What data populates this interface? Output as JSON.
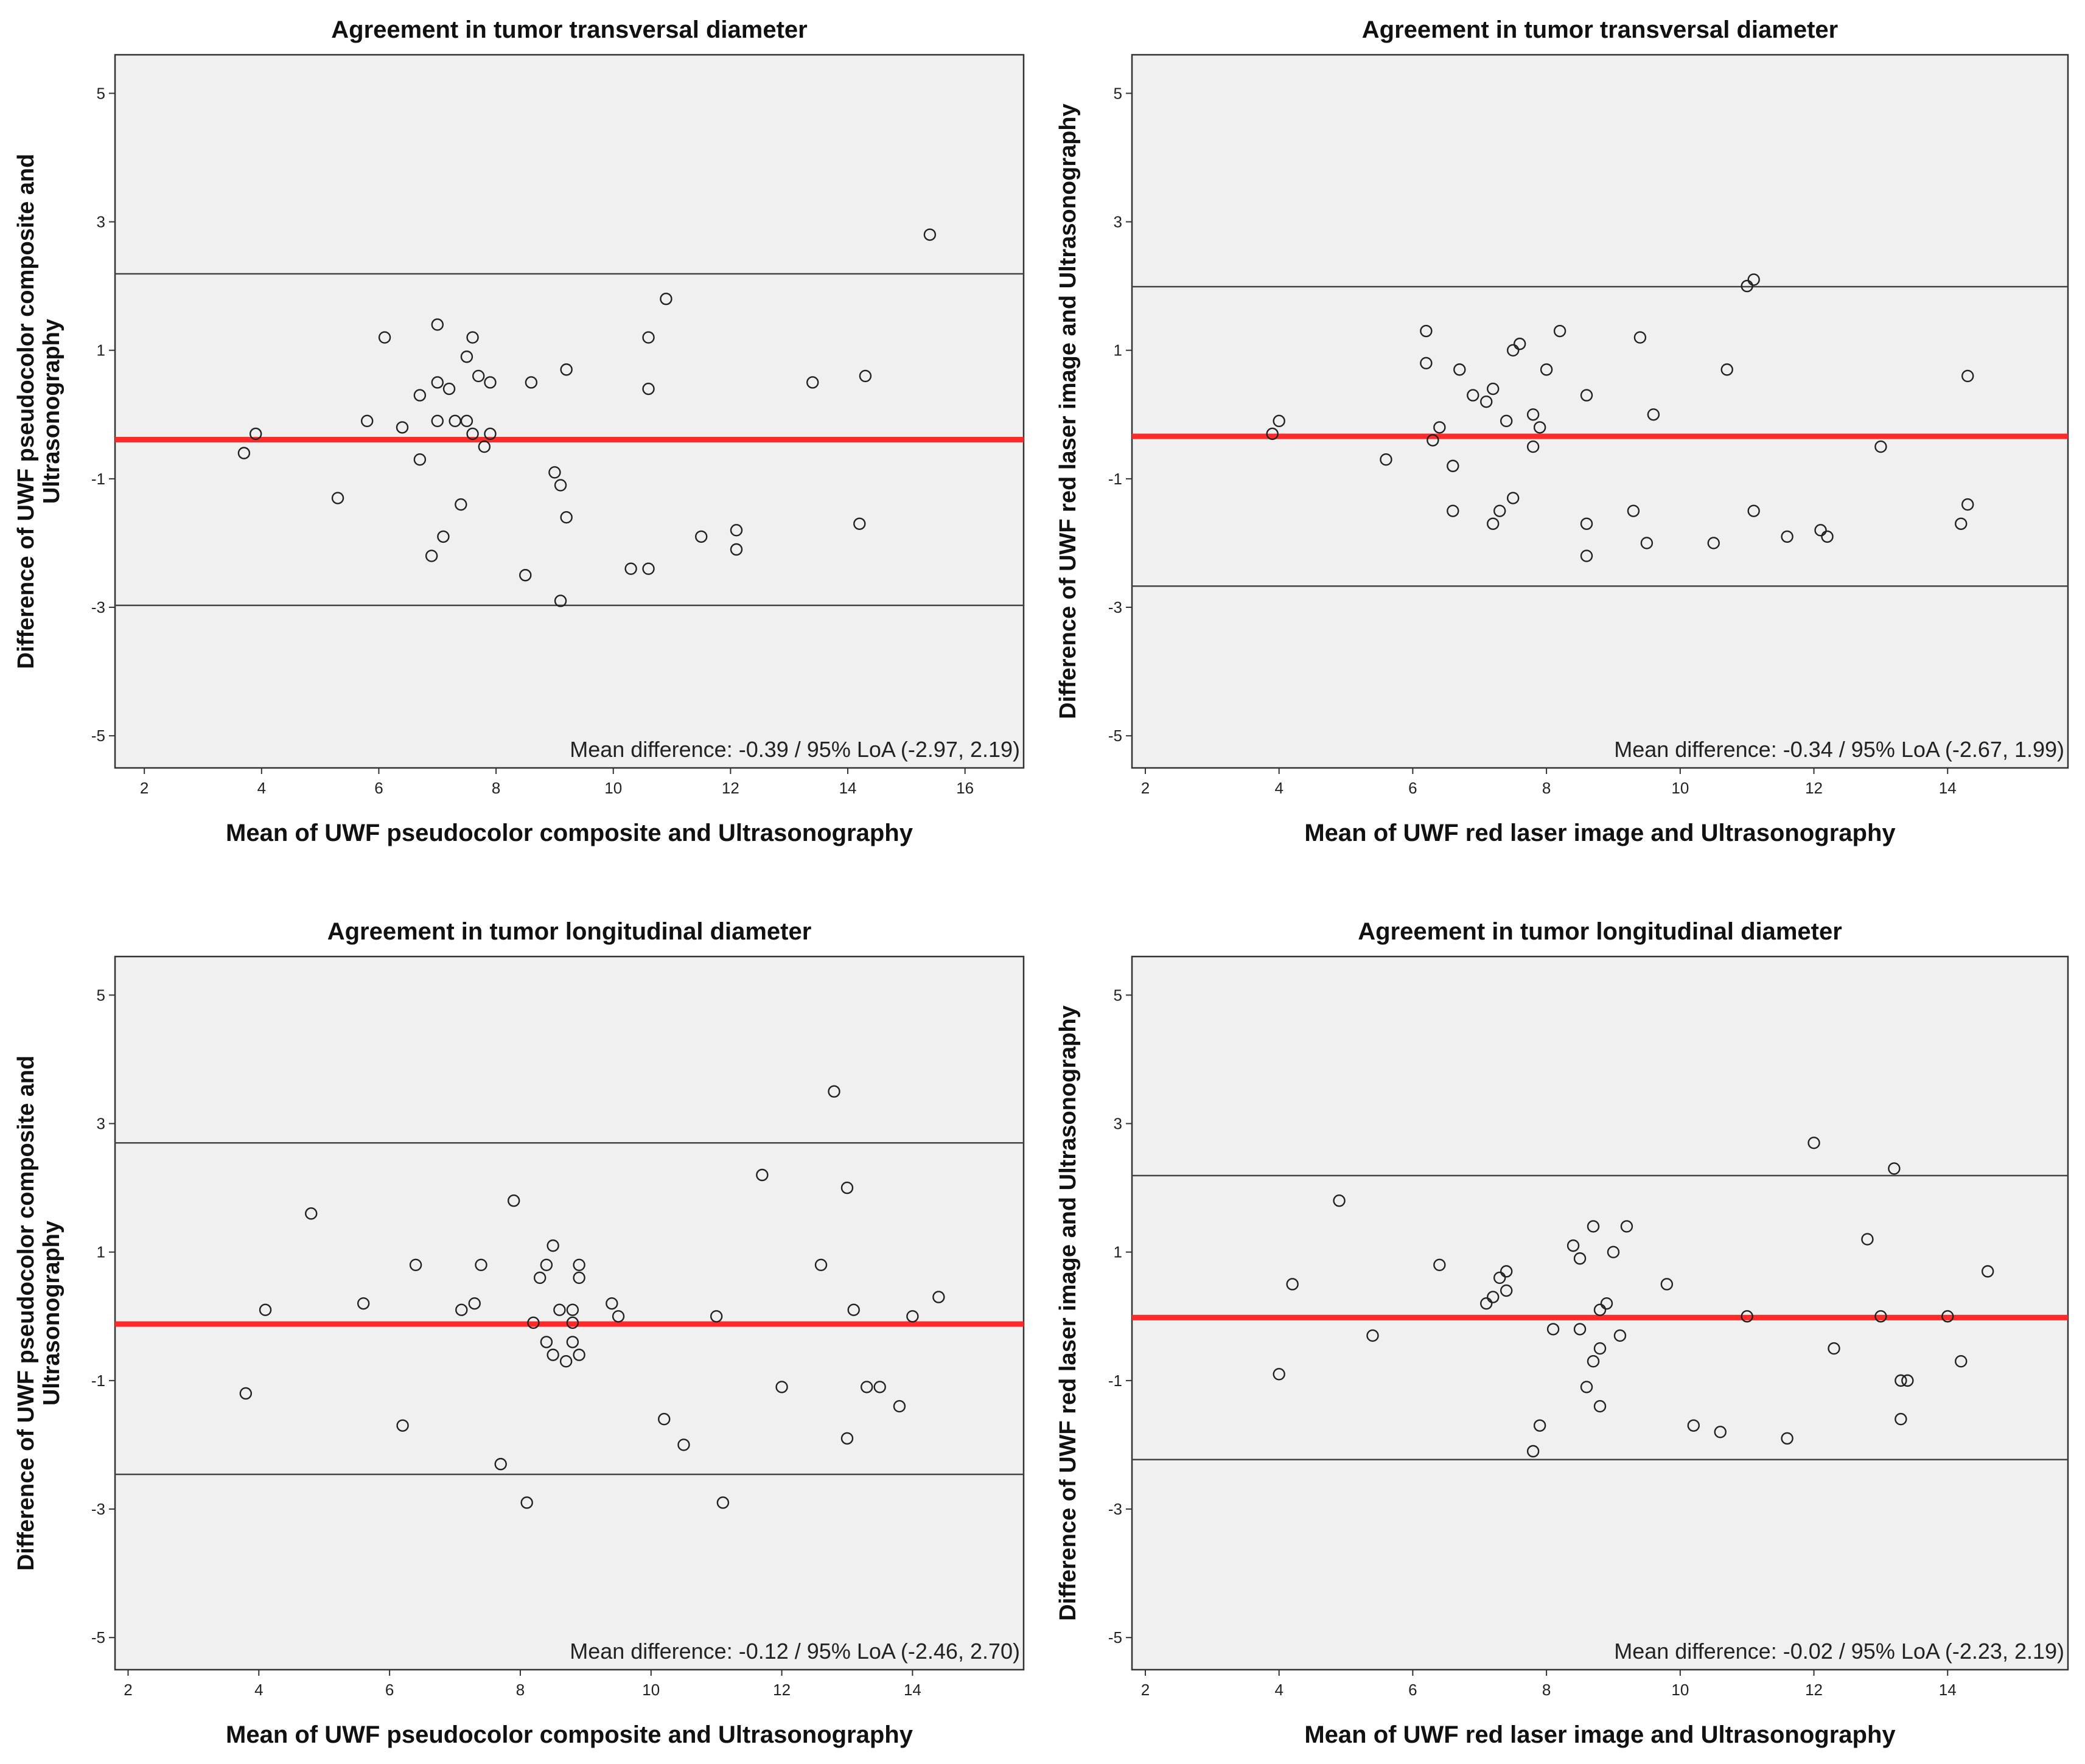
{
  "chart_data": [
    {
      "type": "scatter",
      "title": "Agreement in tumor transversal diameter",
      "xlabel": "Mean of UWF pseudocolor composite and Ultrasonography",
      "ylabel_lines": [
        "Difference of UWF pseudocolor composite and",
        "Ultrasonography"
      ],
      "xlim": [
        1.5,
        17
      ],
      "ylim": [
        -5.5,
        5.6
      ],
      "xticks": [
        2,
        4,
        6,
        8,
        10,
        12,
        14,
        16
      ],
      "yticks": [
        -5,
        -3,
        -1,
        1,
        3,
        5
      ],
      "mean_difference": -0.39,
      "loa_lower": -2.97,
      "loa_upper": 2.19,
      "annotation": "Mean difference: -0.39 / 95% LoA (-2.97, 2.19)",
      "points": [
        [
          3.7,
          -0.6
        ],
        [
          3.9,
          -0.3
        ],
        [
          5.3,
          -1.3
        ],
        [
          5.8,
          -0.1
        ],
        [
          6.1,
          1.2
        ],
        [
          6.4,
          -0.2
        ],
        [
          6.7,
          0.3
        ],
        [
          6.7,
          -0.7
        ],
        [
          6.9,
          -2.2
        ],
        [
          7.0,
          0.5
        ],
        [
          7.0,
          -0.1
        ],
        [
          7.0,
          1.4
        ],
        [
          7.1,
          -1.9
        ],
        [
          7.2,
          0.4
        ],
        [
          7.3,
          -0.1
        ],
        [
          7.4,
          -1.4
        ],
        [
          7.5,
          0.9
        ],
        [
          7.5,
          -0.1
        ],
        [
          7.6,
          -0.3
        ],
        [
          7.6,
          1.2
        ],
        [
          7.7,
          0.6
        ],
        [
          7.8,
          -0.5
        ],
        [
          7.9,
          0.5
        ],
        [
          7.9,
          -0.3
        ],
        [
          8.5,
          -2.5
        ],
        [
          8.6,
          0.5
        ],
        [
          9.0,
          -0.9
        ],
        [
          9.1,
          -1.1
        ],
        [
          9.1,
          -2.9
        ],
        [
          9.2,
          0.7
        ],
        [
          9.2,
          -1.6
        ],
        [
          10.3,
          -2.4
        ],
        [
          10.6,
          1.2
        ],
        [
          10.6,
          0.4
        ],
        [
          10.6,
          -2.4
        ],
        [
          10.9,
          1.8
        ],
        [
          11.5,
          -1.9
        ],
        [
          12.1,
          -1.8
        ],
        [
          12.1,
          -2.1
        ],
        [
          13.4,
          0.5
        ],
        [
          14.2,
          -1.7
        ],
        [
          14.3,
          0.6
        ],
        [
          15.4,
          2.8
        ]
      ]
    },
    {
      "type": "scatter",
      "title": "Agreement in tumor transversal diameter",
      "xlabel": "Mean of UWF red laser image and Ultrasonography",
      "ylabel_lines": [
        "Difference of UWF red laser image and Ultrasonography"
      ],
      "xlim": [
        1.8,
        15.8
      ],
      "ylim": [
        -5.5,
        5.6
      ],
      "xticks": [
        2,
        4,
        6,
        8,
        10,
        12,
        14
      ],
      "yticks": [
        -5,
        -3,
        -1,
        1,
        3,
        5
      ],
      "mean_difference": -0.34,
      "loa_lower": -2.67,
      "loa_upper": 1.99,
      "annotation": "Mean difference: -0.34 / 95% LoA (-2.67, 1.99)",
      "points": [
        [
          3.9,
          -0.3
        ],
        [
          4.0,
          -0.1
        ],
        [
          5.6,
          -0.7
        ],
        [
          6.2,
          1.3
        ],
        [
          6.2,
          0.8
        ],
        [
          6.3,
          -0.4
        ],
        [
          6.4,
          -0.2
        ],
        [
          6.6,
          -1.5
        ],
        [
          6.6,
          -0.8
        ],
        [
          6.7,
          0.7
        ],
        [
          6.9,
          0.3
        ],
        [
          7.1,
          0.2
        ],
        [
          7.2,
          -1.7
        ],
        [
          7.2,
          0.4
        ],
        [
          7.3,
          -1.5
        ],
        [
          7.4,
          -0.1
        ],
        [
          7.5,
          -1.3
        ],
        [
          7.5,
          1.0
        ],
        [
          7.6,
          1.1
        ],
        [
          7.8,
          0.0
        ],
        [
          7.8,
          -0.5
        ],
        [
          7.9,
          -0.2
        ],
        [
          8.0,
          0.7
        ],
        [
          8.2,
          1.3
        ],
        [
          8.6,
          -1.7
        ],
        [
          8.6,
          0.3
        ],
        [
          8.6,
          -2.2
        ],
        [
          9.3,
          -1.5
        ],
        [
          9.4,
          1.2
        ],
        [
          9.5,
          -2.0
        ],
        [
          9.6,
          0.0
        ],
        [
          10.5,
          -2.0
        ],
        [
          10.7,
          0.7
        ],
        [
          11.0,
          2.0
        ],
        [
          11.1,
          2.1
        ],
        [
          11.1,
          -1.5
        ],
        [
          11.6,
          -1.9
        ],
        [
          12.1,
          -1.8
        ],
        [
          12.2,
          -1.9
        ],
        [
          13.0,
          -0.5
        ],
        [
          14.2,
          -1.7
        ],
        [
          14.3,
          -1.4
        ],
        [
          14.3,
          0.6
        ]
      ]
    },
    {
      "type": "scatter",
      "title": "Agreement in tumor longitudinal diameter",
      "xlabel": "Mean of UWF pseudocolor composite and Ultrasonography",
      "ylabel_lines": [
        "Difference of UWF pseudocolor composite and",
        "Ultrasonography"
      ],
      "xlim": [
        1.8,
        15.7
      ],
      "ylim": [
        -5.5,
        5.6
      ],
      "xticks": [
        2,
        4,
        6,
        8,
        10,
        12,
        14
      ],
      "yticks": [
        -5,
        -3,
        -1,
        1,
        3,
        5
      ],
      "mean_difference": -0.12,
      "loa_lower": -2.46,
      "loa_upper": 2.7,
      "annotation": "Mean difference: -0.12 / 95% LoA (-2.46, 2.70)",
      "points": [
        [
          3.8,
          -1.2
        ],
        [
          4.1,
          0.1
        ],
        [
          4.8,
          1.6
        ],
        [
          5.6,
          0.2
        ],
        [
          6.2,
          -1.7
        ],
        [
          6.4,
          0.8
        ],
        [
          7.1,
          0.1
        ],
        [
          7.3,
          0.2
        ],
        [
          7.4,
          0.8
        ],
        [
          7.7,
          -2.3
        ],
        [
          7.9,
          1.8
        ],
        [
          8.1,
          -2.9
        ],
        [
          8.2,
          -0.1
        ],
        [
          8.3,
          0.6
        ],
        [
          8.4,
          -0.4
        ],
        [
          8.4,
          0.8
        ],
        [
          8.5,
          1.1
        ],
        [
          8.5,
          -0.6
        ],
        [
          8.6,
          0.1
        ],
        [
          8.7,
          -0.7
        ],
        [
          8.8,
          0.1
        ],
        [
          8.8,
          -0.1
        ],
        [
          8.8,
          -0.4
        ],
        [
          8.9,
          0.6
        ],
        [
          8.9,
          -0.6
        ],
        [
          8.9,
          0.8
        ],
        [
          9.4,
          0.2
        ],
        [
          9.5,
          0.0
        ],
        [
          10.2,
          -1.6
        ],
        [
          10.5,
          -2.0
        ],
        [
          11.0,
          0.0
        ],
        [
          11.1,
          -2.9
        ],
        [
          11.7,
          2.2
        ],
        [
          12.0,
          -1.1
        ],
        [
          12.6,
          0.8
        ],
        [
          12.8,
          3.5
        ],
        [
          13.0,
          -1.9
        ],
        [
          13.0,
          2.0
        ],
        [
          13.1,
          0.1
        ],
        [
          13.3,
          -1.1
        ],
        [
          13.5,
          -1.1
        ],
        [
          13.8,
          -1.4
        ],
        [
          14.0,
          0.0
        ],
        [
          14.4,
          0.3
        ]
      ]
    },
    {
      "type": "scatter",
      "title": "Agreement in tumor longitudinal diameter",
      "xlabel": "Mean of UWF red laser image and Ultrasonography",
      "ylabel_lines": [
        "Difference of UWF red laser image and Ultrasonography"
      ],
      "xlim": [
        1.8,
        15.8
      ],
      "ylim": [
        -5.5,
        5.6
      ],
      "xticks": [
        2,
        4,
        6,
        8,
        10,
        12,
        14
      ],
      "yticks": [
        -5,
        -3,
        -1,
        1,
        3,
        5
      ],
      "mean_difference": -0.02,
      "loa_lower": -2.23,
      "loa_upper": 2.19,
      "annotation": "Mean difference: -0.02 / 95% LoA (-2.23, 2.19)",
      "points": [
        [
          4.0,
          -0.9
        ],
        [
          4.2,
          0.5
        ],
        [
          4.9,
          1.8
        ],
        [
          5.4,
          -0.3
        ],
        [
          6.4,
          0.8
        ],
        [
          7.1,
          0.2
        ],
        [
          7.2,
          0.3
        ],
        [
          7.3,
          0.6
        ],
        [
          7.4,
          0.7
        ],
        [
          7.4,
          0.4
        ],
        [
          7.8,
          -2.1
        ],
        [
          7.9,
          -1.7
        ],
        [
          8.1,
          -0.2
        ],
        [
          8.4,
          1.1
        ],
        [
          8.5,
          0.9
        ],
        [
          8.5,
          -0.2
        ],
        [
          8.6,
          -1.1
        ],
        [
          8.7,
          -0.7
        ],
        [
          8.7,
          1.4
        ],
        [
          8.8,
          0.1
        ],
        [
          8.8,
          -0.5
        ],
        [
          8.8,
          -1.4
        ],
        [
          8.9,
          0.2
        ],
        [
          9.0,
          1.0
        ],
        [
          9.1,
          -0.3
        ],
        [
          9.2,
          1.4
        ],
        [
          9.8,
          0.5
        ],
        [
          10.2,
          -1.7
        ],
        [
          10.6,
          -1.8
        ],
        [
          11.0,
          0.0
        ],
        [
          11.6,
          -1.9
        ],
        [
          12.0,
          2.7
        ],
        [
          12.3,
          -0.5
        ],
        [
          12.8,
          1.2
        ],
        [
          13.0,
          0.0
        ],
        [
          13.2,
          2.3
        ],
        [
          13.3,
          -1.0
        ],
        [
          13.3,
          -1.6
        ],
        [
          13.4,
          -1.0
        ],
        [
          14.0,
          0.0
        ],
        [
          14.2,
          -0.7
        ],
        [
          14.6,
          0.7
        ]
      ]
    }
  ]
}
